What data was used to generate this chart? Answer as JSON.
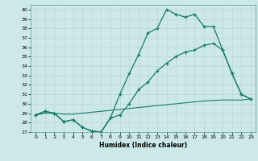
{
  "title": "",
  "xlabel": "Humidex (Indice chaleur)",
  "bg_color": "#cce8e8",
  "line_color": "#1a7a6e",
  "xlim": [
    -0.5,
    23.5
  ],
  "ylim": [
    27,
    40.5
  ],
  "xticks": [
    0,
    1,
    2,
    3,
    4,
    5,
    6,
    7,
    8,
    9,
    10,
    11,
    12,
    13,
    14,
    15,
    16,
    17,
    18,
    19,
    20,
    21,
    22,
    23
  ],
  "yticks": [
    27,
    28,
    29,
    30,
    31,
    32,
    33,
    34,
    35,
    36,
    37,
    38,
    39,
    40
  ],
  "line1_x": [
    0,
    1,
    2,
    3,
    4,
    5,
    6,
    7,
    8,
    9,
    10,
    11,
    12,
    13,
    14,
    15,
    16,
    17,
    18,
    19,
    20,
    21,
    22,
    23
  ],
  "line1_y": [
    28.8,
    29.2,
    29.0,
    28.1,
    28.3,
    27.5,
    27.1,
    27.0,
    28.5,
    31.0,
    33.2,
    35.2,
    37.5,
    38.0,
    40.0,
    39.5,
    39.2,
    39.5,
    38.2,
    38.2,
    35.7,
    33.2,
    31.0,
    30.5
  ],
  "line2_x": [
    0,
    1,
    2,
    3,
    4,
    5,
    6,
    7,
    8,
    9,
    10,
    11,
    12,
    13,
    14,
    15,
    16,
    17,
    18,
    19,
    20,
    21,
    22,
    23
  ],
  "line2_y": [
    28.8,
    29.2,
    29.0,
    28.1,
    28.3,
    27.5,
    27.1,
    27.0,
    28.5,
    28.8,
    30.0,
    31.5,
    32.3,
    33.5,
    34.3,
    35.0,
    35.5,
    35.7,
    36.2,
    36.4,
    35.7,
    33.2,
    31.0,
    30.5
  ],
  "line3_x": [
    0,
    1,
    2,
    3,
    4,
    5,
    6,
    7,
    8,
    9,
    10,
    11,
    12,
    13,
    14,
    15,
    16,
    17,
    18,
    19,
    20,
    21,
    22,
    23
  ],
  "line3_y": [
    28.8,
    29.0,
    29.0,
    28.9,
    28.9,
    29.0,
    29.1,
    29.2,
    29.3,
    29.4,
    29.5,
    29.6,
    29.7,
    29.8,
    29.9,
    30.0,
    30.1,
    30.2,
    30.3,
    30.35,
    30.4,
    30.4,
    30.4,
    30.5
  ]
}
